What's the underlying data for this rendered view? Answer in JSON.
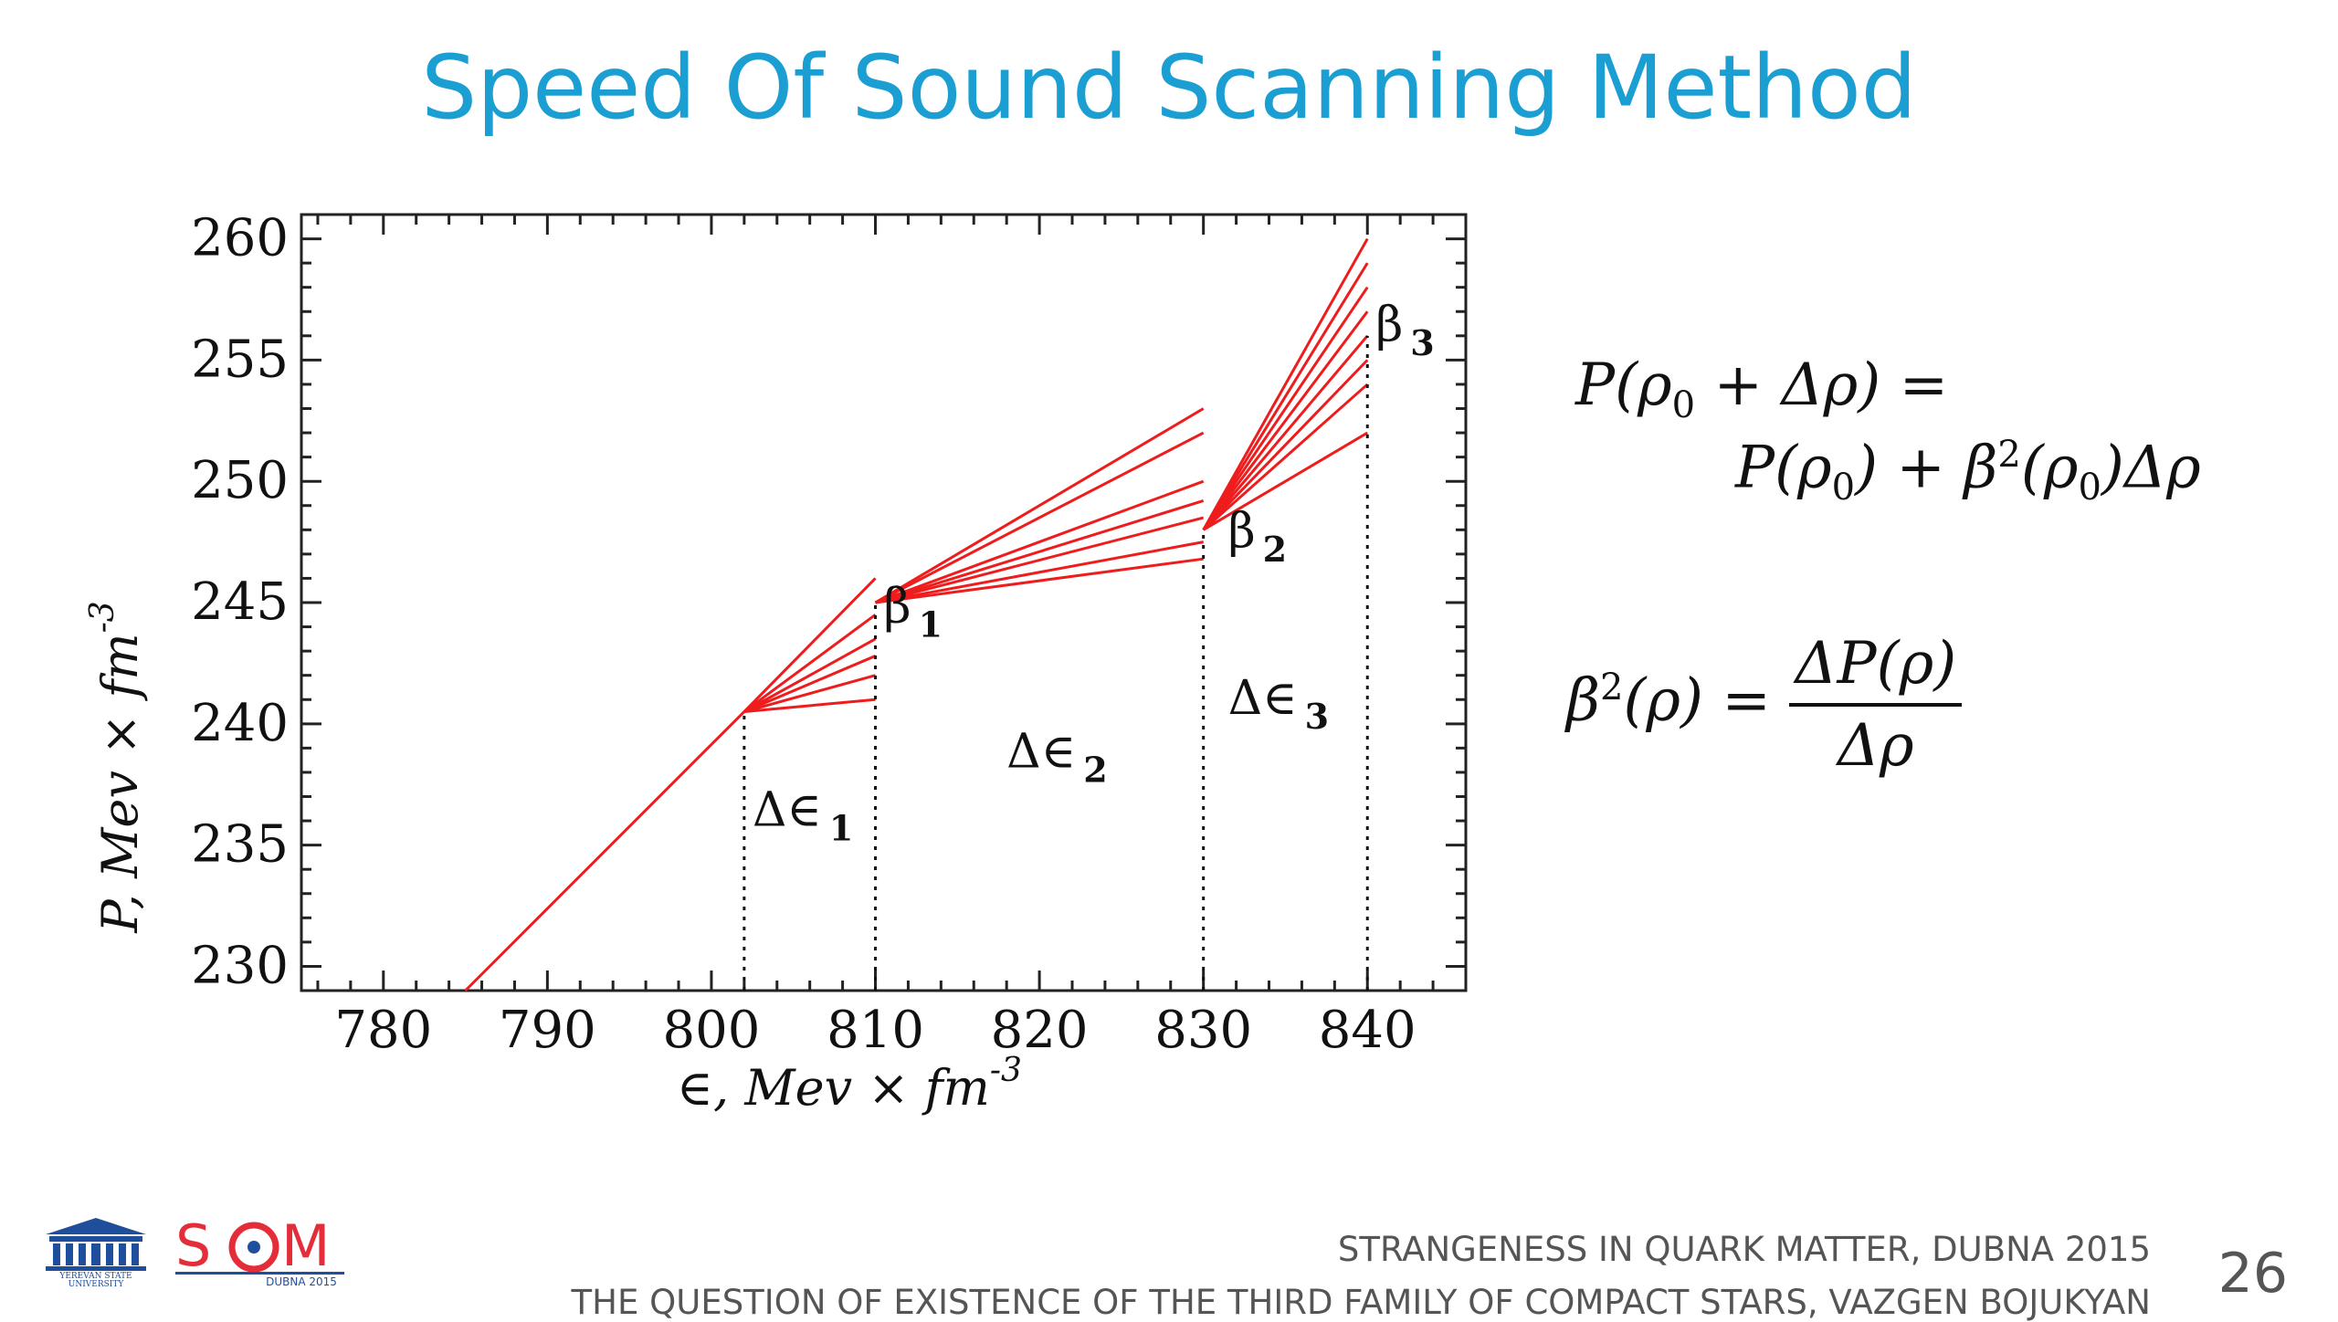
{
  "slide": {
    "title": "Speed Of Sound Scanning Method",
    "page_number": "26",
    "footer_line1": "STRANGENESS IN QUARK MATTER,  DUBNA 2015",
    "footer_line2": "THE QUESTION OF EXISTENCE OF THE THIRD FAMILY OF COMPACT STARS, VAZGEN BOJUKYAN",
    "logo_left_text": "YEREVAN STATE UNIVERSITY",
    "logo_right_text": "SQM",
    "logo_right_subtext": "DUBNA 2015",
    "colors": {
      "title": "#1b9fd2",
      "curve": "#ee1c1c",
      "sqm_red": "#e52d3a",
      "sqm_blue": "#1f4f9c",
      "ysu_blue": "#1f4f9c"
    }
  },
  "formulas": {
    "eq1_line1": "P(ρ0 + Δρ) =",
    "eq1_line2": "P(ρ0) + β2(ρ0)Δρ",
    "eq2_lhs": "β2(ρ) =",
    "eq2_num": "ΔP(ρ)",
    "eq2_den": "Δρ"
  },
  "chart_data": {
    "type": "line",
    "xlabel": "∈, Mev × fm-3",
    "ylabel": "P, Mev × fm-3",
    "xlim": [
      775,
      846
    ],
    "ylim": [
      229,
      261
    ],
    "xticks": [
      780,
      790,
      800,
      810,
      820,
      830,
      840
    ],
    "yticks": [
      230,
      235,
      240,
      245,
      250,
      255,
      260
    ],
    "line_color": "#ee1c1c",
    "series": [
      {
        "x": [
          785,
          802
        ],
        "y": [
          229,
          240.5
        ]
      },
      {
        "x": [
          802,
          810
        ],
        "y": [
          240.5,
          246
        ]
      },
      {
        "x": [
          802,
          810
        ],
        "y": [
          240.5,
          244.5
        ]
      },
      {
        "x": [
          802,
          810
        ],
        "y": [
          240.5,
          243.5
        ]
      },
      {
        "x": [
          802,
          810
        ],
        "y": [
          240.5,
          242.8
        ]
      },
      {
        "x": [
          802,
          810
        ],
        "y": [
          240.5,
          242
        ]
      },
      {
        "x": [
          802,
          810
        ],
        "y": [
          240.5,
          241
        ]
      },
      {
        "x": [
          810,
          830
        ],
        "y": [
          245,
          253
        ]
      },
      {
        "x": [
          810,
          830
        ],
        "y": [
          245,
          252
        ]
      },
      {
        "x": [
          810,
          830
        ],
        "y": [
          245,
          250
        ]
      },
      {
        "x": [
          810,
          830
        ],
        "y": [
          245,
          249.2
        ]
      },
      {
        "x": [
          810,
          830
        ],
        "y": [
          245,
          248.5
        ]
      },
      {
        "x": [
          810,
          830
        ],
        "y": [
          245,
          247.5
        ]
      },
      {
        "x": [
          810,
          830
        ],
        "y": [
          245,
          246.8
        ]
      },
      {
        "x": [
          830,
          840
        ],
        "y": [
          248,
          260
        ]
      },
      {
        "x": [
          830,
          840
        ],
        "y": [
          248,
          259
        ]
      },
      {
        "x": [
          830,
          840
        ],
        "y": [
          248,
          258
        ]
      },
      {
        "x": [
          830,
          840
        ],
        "y": [
          248,
          257
        ]
      },
      {
        "x": [
          830,
          840
        ],
        "y": [
          248,
          256
        ]
      },
      {
        "x": [
          830,
          840
        ],
        "y": [
          248,
          255
        ]
      },
      {
        "x": [
          830,
          840
        ],
        "y": [
          248,
          254
        ]
      },
      {
        "x": [
          830,
          840
        ],
        "y": [
          248,
          252
        ]
      }
    ],
    "vlines": [
      {
        "x": 802,
        "y_top": 240.5
      },
      {
        "x": 810,
        "y_top": 245
      },
      {
        "x": 830,
        "y_top": 248
      },
      {
        "x": 840,
        "y_top": 256
      }
    ],
    "annotations": [
      {
        "text": "β",
        "sub": "1",
        "x": 810.5,
        "y": 244.2
      },
      {
        "text": "β",
        "sub": "2",
        "x": 831.5,
        "y": 247.3
      },
      {
        "text": "β",
        "sub": "3",
        "x": 840.5,
        "y": 255.8
      },
      {
        "text": "Δ∈",
        "sub": "1",
        "x": 802.5,
        "y": 235.8
      },
      {
        "text": "Δ∈",
        "sub": "2",
        "x": 818,
        "y": 238.2
      },
      {
        "text": "Δ∈",
        "sub": "3",
        "x": 831.5,
        "y": 240.4
      }
    ]
  }
}
